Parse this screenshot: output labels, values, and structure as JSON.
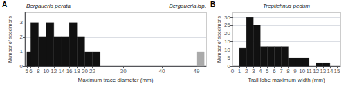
{
  "chart_data": [
    {
      "type": "bar",
      "annotations": [
        "A"
      ],
      "xlabel": "Maximum trace diameter (mm)",
      "ylabel": "Number of specimens",
      "bin_width": 2,
      "series": [
        {
          "name": "Bergaueria perata",
          "color": "#111111",
          "x": [
            5,
            6,
            8,
            10,
            12,
            14,
            16,
            18,
            20,
            22
          ],
          "values": [
            1,
            3,
            2,
            3,
            2,
            2,
            3,
            2,
            1,
            1
          ]
        },
        {
          "name": "Bergaueria isp.",
          "color": "#aaaaaa",
          "x": [
            49
          ],
          "values": [
            1
          ]
        }
      ],
      "xlim": [
        4.5,
        51.5
      ],
      "xticks": [
        5,
        6,
        8,
        10,
        12,
        14,
        16,
        18,
        20,
        22,
        30,
        40,
        49
      ],
      "ylim": [
        0,
        3.7
      ],
      "yticks": [
        0,
        1,
        2,
        3
      ],
      "grid": true
    },
    {
      "type": "bar",
      "title": "Treptichnus pedum",
      "annotations": [
        "B"
      ],
      "xlabel": "Trail lobe maximum width (mm)",
      "ylabel": "Number of specimens",
      "bin_width": 1,
      "color": "#111111",
      "x": [
        1,
        2,
        3,
        4,
        5,
        6,
        7,
        8,
        9,
        10,
        12,
        13
      ],
      "values": [
        11,
        30,
        25,
        12,
        12,
        12,
        12,
        5,
        5,
        5,
        2,
        2
      ],
      "xlim": [
        0,
        15.5
      ],
      "xticks": [
        0,
        1,
        2,
        3,
        4,
        5,
        6,
        7,
        8,
        9,
        10,
        11,
        12,
        13,
        14,
        15
      ],
      "ylim": [
        0,
        33
      ],
      "yticks": [
        0,
        5,
        10,
        15,
        20,
        25,
        30
      ],
      "grid": true
    }
  ]
}
